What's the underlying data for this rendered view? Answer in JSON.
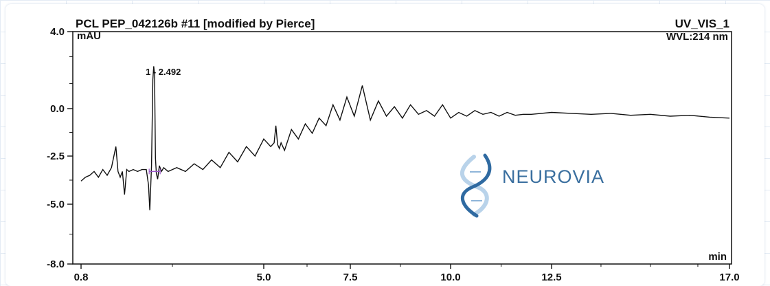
{
  "chart_data": {
    "type": "line",
    "title": "PCL PEP_042126b #11 [modified by Pierce]",
    "channel": "UV_VIS_1",
    "wavelength": "WVL:214 nm",
    "ylabel": "mAU",
    "xlabel": "min",
    "xlim": [
      0.8,
      17.0
    ],
    "ylim": [
      -8.0,
      4.0
    ],
    "x_ticks": [
      "0.8",
      "5.0",
      "7.5",
      "10.0",
      "12.5",
      "17.0"
    ],
    "y_ticks": [
      "4.0",
      "0.0",
      "-2.5",
      "-5.0",
      "-8.0"
    ],
    "peak_label": "1 - 2.492",
    "peak_x": 2.492,
    "series": [
      {
        "x": [
          0.8,
          0.9,
          1.0,
          1.1,
          1.2,
          1.3,
          1.4,
          1.5,
          1.6,
          1.65,
          1.7,
          1.75,
          1.8,
          1.85,
          1.9,
          2.0,
          2.1,
          2.2,
          2.3,
          2.35,
          2.38,
          2.42,
          2.45,
          2.47,
          2.49,
          2.51,
          2.53,
          2.56,
          2.6,
          2.65,
          2.7,
          2.8,
          2.9,
          3.0,
          3.2,
          3.4,
          3.6,
          3.8,
          4.0,
          4.2,
          4.4,
          4.6,
          4.8,
          5.0,
          5.2,
          5.3,
          5.35,
          5.4,
          5.45,
          5.5,
          5.6,
          5.8,
          6.0,
          6.2,
          6.4,
          6.6,
          6.8,
          7.0,
          7.2,
          7.4,
          7.6,
          7.8,
          8.0,
          8.2,
          8.4,
          8.6,
          8.8,
          9.0,
          9.2,
          9.4,
          9.6,
          9.8,
          10.0,
          10.2,
          10.4,
          10.6,
          10.8,
          11.0,
          11.2,
          11.4,
          11.6,
          11.8,
          12.0,
          12.5,
          13.0,
          13.5,
          14.0,
          14.5,
          15.0,
          15.5,
          16.0,
          16.5,
          17.0
        ],
        "y": [
          -3.8,
          -3.6,
          -3.5,
          -3.3,
          -3.6,
          -3.2,
          -3.5,
          -3.1,
          -2.0,
          -3.3,
          -3.6,
          -3.3,
          -4.5,
          -3.2,
          -3.3,
          -3.2,
          -3.3,
          -3.2,
          -3.2,
          -4.0,
          -5.3,
          -3.0,
          1.5,
          2.2,
          1.8,
          -2.6,
          -3.4,
          -3.7,
          -3.0,
          -3.3,
          -3.1,
          -3.3,
          -3.2,
          -3.1,
          -3.3,
          -2.9,
          -3.2,
          -2.7,
          -3.1,
          -2.3,
          -2.8,
          -2.0,
          -2.5,
          -1.6,
          -2.0,
          -1.8,
          -0.9,
          -1.9,
          -2.1,
          -1.8,
          -2.2,
          -1.1,
          -1.6,
          -0.8,
          -1.3,
          -0.5,
          -0.9,
          0.2,
          -0.6,
          0.6,
          -0.4,
          1.2,
          -0.6,
          0.4,
          -0.4,
          0.1,
          -0.5,
          0.2,
          -0.3,
          -0.1,
          -0.4,
          0.2,
          -0.5,
          -0.2,
          -0.4,
          -0.1,
          -0.3,
          -0.2,
          -0.4,
          -0.2,
          -0.35,
          -0.3,
          -0.3,
          -0.2,
          -0.25,
          -0.3,
          -0.25,
          -0.35,
          -0.3,
          -0.4,
          -0.35,
          -0.45,
          -0.5
        ]
      }
    ],
    "grid": false,
    "watermark": "NEUROVIA"
  },
  "colors": {
    "line": "#111111",
    "watermark_text": "#3a6f9f",
    "watermark_helix_light": "#b9d3ea",
    "watermark_helix_dark": "#2f6aa1",
    "marker": "#9a57c7"
  }
}
